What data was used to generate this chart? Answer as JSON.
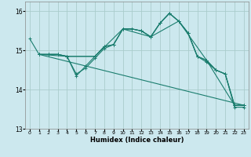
{
  "title": "",
  "xlabel": "Humidex (Indice chaleur)",
  "xlim": [
    -0.5,
    23.5
  ],
  "ylim": [
    13.0,
    16.25
  ],
  "yticks": [
    13,
    14,
    15,
    16
  ],
  "xtick_labels": [
    "0",
    "1",
    "2",
    "3",
    "4",
    "5",
    "6",
    "7",
    "8",
    "9",
    "10",
    "11",
    "12",
    "13",
    "14",
    "15",
    "16",
    "17",
    "18",
    "19",
    "20",
    "21",
    "22",
    "23"
  ],
  "bg_color": "#cce8ee",
  "plot_bg_color": "#cce8ee",
  "line_color": "#1a7d6e",
  "grid_color": "#aacccc",
  "lines": [
    {
      "x": [
        0,
        1,
        2,
        3,
        4,
        5,
        6,
        7,
        8,
        9,
        10,
        11,
        12,
        13,
        14,
        15,
        16,
        17,
        18,
        19,
        20,
        21,
        22,
        23
      ],
      "y": [
        15.3,
        14.9,
        14.9,
        14.9,
        14.85,
        14.4,
        14.55,
        14.8,
        15.05,
        15.15,
        15.55,
        15.55,
        15.5,
        15.35,
        15.7,
        15.95,
        15.75,
        15.45,
        14.85,
        14.7,
        14.5,
        14.4,
        13.55,
        13.55
      ]
    },
    {
      "x": [
        1,
        2,
        3,
        4,
        5,
        6,
        7,
        8,
        9,
        10,
        11,
        12,
        13,
        14,
        15,
        16,
        17,
        18,
        19,
        20,
        21,
        22,
        23
      ],
      "y": [
        14.9,
        14.9,
        14.9,
        14.85,
        14.35,
        14.6,
        14.85,
        15.1,
        15.15,
        15.55,
        15.55,
        15.5,
        15.35,
        15.7,
        15.95,
        15.75,
        15.45,
        14.85,
        14.75,
        14.5,
        14.4,
        13.6,
        13.6
      ]
    },
    {
      "x": [
        1,
        2,
        3,
        4,
        7,
        8,
        9,
        10,
        11,
        12,
        13,
        14,
        15,
        16,
        17,
        18,
        19,
        20,
        21,
        22,
        23
      ],
      "y": [
        14.9,
        14.9,
        14.9,
        14.85,
        14.85,
        15.1,
        15.15,
        15.55,
        15.55,
        15.5,
        15.35,
        15.7,
        15.95,
        15.75,
        15.45,
        14.85,
        14.75,
        14.5,
        14.4,
        13.6,
        13.6
      ]
    },
    {
      "x": [
        1,
        4,
        7,
        10,
        13,
        16,
        19,
        22,
        23
      ],
      "y": [
        14.9,
        14.85,
        14.85,
        15.55,
        15.35,
        15.75,
        14.75,
        13.6,
        13.6
      ]
    },
    {
      "x": [
        1,
        23
      ],
      "y": [
        14.9,
        13.6
      ]
    }
  ]
}
